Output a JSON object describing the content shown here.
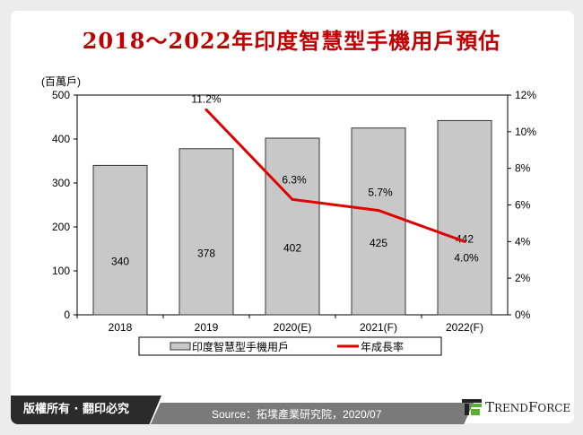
{
  "title": "2018～2022年印度智慧型手機用戶預估",
  "footer": {
    "copyright": "版權所有 · 翻印必究",
    "source": "Source：拓墣產業研究院，2020/07",
    "logo": "TRENDFORCE"
  },
  "colors": {
    "bar": "#c8c8c8",
    "line": "#e00000",
    "title": "#c00000"
  },
  "chart_data": {
    "type": "bar+line",
    "categories": [
      "2018",
      "2019",
      "2020(E)",
      "2021(F)",
      "2022(F)"
    ],
    "ylabel": "(百萬戶)",
    "ylim": [
      0,
      500
    ],
    "yticks": [
      "0",
      "100",
      "200",
      "300",
      "400",
      "500"
    ],
    "y2lim": [
      0,
      12
    ],
    "y2ticks": [
      "0%",
      "2%",
      "4%",
      "6%",
      "8%",
      "10%",
      "12%"
    ],
    "series": [
      {
        "name": "印度智慧型手機用戶",
        "type": "bar",
        "values": [
          340,
          378,
          402,
          425,
          442
        ],
        "labels": [
          "340",
          "378",
          "402",
          "425",
          "442"
        ]
      },
      {
        "name": "年成長率",
        "type": "line",
        "axis": "right",
        "values": [
          null,
          11.2,
          6.3,
          5.7,
          4.0
        ],
        "labels": [
          "",
          "11.2%",
          "6.3%",
          "5.7%",
          "4.0%"
        ]
      }
    ],
    "grid": false,
    "legend": "bottom"
  }
}
